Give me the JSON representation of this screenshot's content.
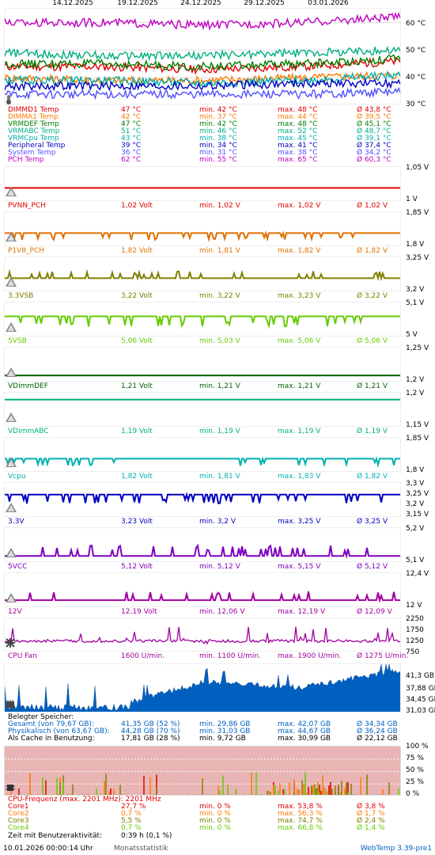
{
  "dates": [
    "14.12.2025",
    "19.12.2025",
    "24.12.2025",
    "29.12.2025",
    "03.01.2026"
  ],
  "colors": {
    "dimmd1": "#e00000",
    "dimma1": "#ff7a00",
    "vrmdef": "#008000",
    "vrmabc": "#00b080",
    "vrmcpu": "#00b0b0",
    "periph": "#0000c0",
    "system": "#5050ff",
    "pch": "#c000c0"
  },
  "temp_panel": {
    "y_labels": [
      "60 °C",
      "50 °C",
      "40 °C",
      "30 °C"
    ],
    "rows": [
      {
        "name": "DIMMD1 Temp",
        "cur": "47 °C",
        "min": "min. 42 °C",
        "max": "max. 48 °C",
        "avg": "Ø 43,8 °C",
        "color": "#e00000"
      },
      {
        "name": "DIMMA1 Temp",
        "cur": "42 °C",
        "min": "min. 37 °C",
        "max": "max. 44 °C",
        "avg": "Ø 39,5 °C",
        "color": "#ff7a00"
      },
      {
        "name": "VRMDEF Temp",
        "cur": "47 °C",
        "min": "min. 42 °C",
        "max": "max. 48 °C",
        "avg": "Ø 45,1 °C",
        "color": "#008000"
      },
      {
        "name": "VRMABC Temp",
        "cur": "51 °C",
        "min": "min. 46 °C",
        "max": "max. 52 °C",
        "avg": "Ø 48,7 °C",
        "color": "#00b080"
      },
      {
        "name": "VRMCpu Temp",
        "cur": "43 °C",
        "min": "min. 38 °C",
        "max": "max. 45 °C",
        "avg": "Ø 39,1 °C",
        "color": "#00b0b0"
      },
      {
        "name": "Peripheral Temp",
        "cur": "39 °C",
        "min": "min. 34 °C",
        "max": "max. 41 °C",
        "avg": "Ø 37,4 °C",
        "color": "#0000c0"
      },
      {
        "name": "System Temp",
        "cur": "36 °C",
        "min": "min. 31 °C",
        "max": "max. 38 °C",
        "avg": "Ø 34,2 °C",
        "color": "#5050ff"
      },
      {
        "name": "PCH Temp",
        "cur": "62 °C",
        "min": "min. 55 °C",
        "max": "max. 65 °C",
        "avg": "Ø 60,3 °C",
        "color": "#c000c0"
      }
    ]
  },
  "volt_panels": [
    {
      "id": "pvnn",
      "name": "PVNN_PCH",
      "cur": "1,02 Volt",
      "min": "min. 1,02 V",
      "max": "max. 1,02 V",
      "avg": "Ø 1,02 V",
      "color": "#e00000",
      "y_top": "1,05 V",
      "y_bot": "1 V",
      "lo": 1.0,
      "hi": 1.05,
      "base": 1.02,
      "spike": 0
    },
    {
      "id": "p1v8",
      "name": "P1V8_PCH",
      "cur": "1,82 Volt",
      "min": "min. 1,81 V",
      "max": "max. 1,82 V",
      "avg": "Ø 1,82 V",
      "color": "#e07000",
      "y_top": "1,85 V",
      "y_bot": "1,8 V",
      "lo": 1.8,
      "hi": 1.85,
      "base": 1.82,
      "spike": -0.01
    },
    {
      "id": "3v3sb",
      "name": "3.3VSB",
      "cur": "3,22 Volt",
      "min": "min. 3,22 V",
      "max": "max. 3,23 V",
      "avg": "Ø 3,22 V",
      "color": "#808000",
      "y_top": "3,25 V",
      "y_bot": "3,2 V",
      "lo": 3.2,
      "hi": 3.25,
      "base": 3.22,
      "spike": 0.01
    },
    {
      "id": "5vsb",
      "name": "5VSB",
      "cur": "5,06 Volt",
      "min": "min. 5,03 V",
      "max": "max. 5,06 V",
      "avg": "Ø 5,06 V",
      "color": "#66cc00",
      "y_top": "5,1 V",
      "y_bot": "5 V",
      "lo": 5.0,
      "hi": 5.1,
      "base": 5.06,
      "spike": -0.03
    },
    {
      "id": "vdimmdef",
      "name": "VDimmDEF",
      "cur": "1,21 Volt",
      "min": "min. 1,21 V",
      "max": "max. 1,21 V",
      "avg": "Ø 1,21 V",
      "color": "#006000",
      "y_top": "1,25 V",
      "y_bot": "1,2 V",
      "lo": 1.2,
      "hi": 1.25,
      "base": 1.21,
      "spike": 0
    },
    {
      "id": "vdimmabc",
      "name": "VDimmABC",
      "cur": "1,19 Volt",
      "min": "min. 1,19 V",
      "max": "max. 1,19 V",
      "avg": "Ø 1,19 V",
      "color": "#00b080",
      "y_top": "1,2 V",
      "y_bot": "1,15 V",
      "lo": 1.15,
      "hi": 1.2,
      "base": 1.19,
      "spike": 0
    },
    {
      "id": "vcpu",
      "name": "Vcpu",
      "cur": "1,82 Volt",
      "min": "min. 1,81 V",
      "max": "max. 1,83 V",
      "avg": "Ø 1,82 V",
      "color": "#00b0b0",
      "y_top": "1,85 V",
      "y_bot": "1,8 V",
      "lo": 1.8,
      "hi": 1.85,
      "base": 1.82,
      "spike": -0.01
    },
    {
      "id": "3v3",
      "name": "3.3V",
      "cur": "3,23 Volt",
      "min": "min. 3,2 V",
      "max": "max. 3,25 V",
      "avg": "Ø 3,25 V",
      "color": "#0000c0",
      "y_labels": [
        "3,3 V",
        "3,25 V",
        "3,2 V",
        "3,15 V"
      ],
      "lo": 3.15,
      "hi": 3.3,
      "base": 3.25,
      "spike": -0.04
    },
    {
      "id": "5vcc",
      "name": "5VCC",
      "cur": "5,12 Volt",
      "min": "min. 5,12 V",
      "max": "max. 5,15 V",
      "avg": "Ø 5,12 V",
      "color": "#8000c0",
      "y_top": "5,2 V",
      "y_bot": "5,1 V",
      "lo": 5.1,
      "hi": 5.2,
      "base": 5.12,
      "spike": 0.03
    },
    {
      "id": "12v",
      "name": "12V",
      "cur": "12,19 Volt",
      "min": "min. 12,06 V",
      "max": "max. 12,19 V",
      "avg": "Ø 12,09 V",
      "color": "#a000a0",
      "y_top": "12,4 V",
      "y_bot": "12 V",
      "lo": 12.0,
      "hi": 12.4,
      "base": 12.09,
      "spike": 0.1
    }
  ],
  "fan_panel": {
    "name": "CPU Fan",
    "cur": "1600 U/min.",
    "min": "min. 1100 U/min.",
    "max": "max. 1900 U/min.",
    "avg": "Ø 1275 U/min.",
    "color": "#a000a0",
    "y_labels": [
      "2250",
      "1750",
      "1250",
      "750"
    ]
  },
  "mem_panel": {
    "title": "Belegter Speicher:",
    "y_labels": [
      "41,3 GB",
      "37,88 GB",
      "34,45 GB",
      "31,03 GB"
    ],
    "rows": [
      {
        "name": "Gesamt (von 79,67 GB):",
        "cur": "41,35 GB (52 %)",
        "min": "min. 29,86 GB",
        "max": "max. 42,07 GB",
        "avg": "Ø 34,34 GB",
        "color": "#0060c0"
      },
      {
        "name": "Physikalisch (von 63,67 GB):",
        "cur": "44,28 GB (70 %)",
        "min": "min. 31,03 GB",
        "max": "max. 44,67 GB",
        "avg": "Ø 36,24 GB",
        "color": "#0060c0"
      },
      {
        "name": "Als Cache in Benutzung:",
        "cur": "17,81 GB (28 %)",
        "min": "min. 9,72 GB",
        "max": "max. 30,99 GB",
        "avg": "Ø 22,12 GB",
        "color": "#000000"
      }
    ]
  },
  "cpu_panel": {
    "y_labels": [
      "100 %",
      "75 %",
      "50 %",
      "25 %",
      "0 %"
    ],
    "freq": "CPU-Frequenz (max. 2201 MHz): 2201 MHz",
    "rows": [
      {
        "name": "Core1",
        "cur": "27,7 %",
        "min": "min. 0 %",
        "max": "max. 53,8 %",
        "avg": "Ø 3,8 %",
        "color": "#e00000"
      },
      {
        "name": "Core2",
        "cur": "0,7 %",
        "min": "min. 0 %",
        "max": "max. 56,3 %",
        "avg": "Ø 1,7 %",
        "color": "#ff7a00"
      },
      {
        "name": "Core3",
        "cur": "5,5 %",
        "min": "min. 0 %",
        "max": "max. 74,7 %",
        "avg": "Ø 2,4 %",
        "color": "#808000"
      },
      {
        "name": "Core4",
        "cur": "0,7 %",
        "min": "min. 0 %",
        "max": "max. 66,8 %",
        "avg": "Ø 1,4 %",
        "color": "#66cc00"
      }
    ],
    "activity_label": "Zeit mit Benutzeraktivität:",
    "activity_value": "0:39 h (0,1 %)"
  },
  "footer": {
    "timestamp": "10.01.2026 00:00:14 Uhr",
    "stat": "Monatsstatistik",
    "version": "WebTemp 3.39-pre1"
  },
  "chart_data": [
    {
      "type": "line",
      "title": "",
      "xlabel": "",
      "ylabel": "",
      "x": [
        "14.12.2025",
        "19.12.2025",
        "24.12.2025",
        "29.12.2025",
        "03.01.2026"
      ],
      "ylim": [
        30,
        65
      ],
      "series": [
        {
          "name": "DIMMD1 Temp",
          "values": [
            44,
            44,
            43,
            44,
            46
          ]
        },
        {
          "name": "DIMMA1 Temp",
          "values": [
            40,
            39,
            39,
            40,
            41
          ]
        },
        {
          "name": "VRMDEF Temp",
          "values": [
            45,
            45,
            44,
            45,
            47
          ]
        },
        {
          "name": "VRMABC Temp",
          "values": [
            49,
            48,
            48,
            49,
            50
          ]
        },
        {
          "name": "VRMCpu Temp",
          "values": [
            39,
            39,
            38,
            39,
            41
          ]
        },
        {
          "name": "Peripheral Temp",
          "values": [
            37,
            37,
            37,
            38,
            38
          ]
        },
        {
          "name": "System Temp",
          "values": [
            34,
            34,
            34,
            34,
            35
          ]
        },
        {
          "name": "PCH Temp",
          "values": [
            60,
            60,
            59,
            60,
            62
          ]
        }
      ]
    },
    {
      "type": "area",
      "title": "",
      "ylabel": "",
      "ylim": [
        31.03,
        41.3
      ],
      "series": [
        {
          "name": "Gesamt (von 79,67 GB):",
          "values": [
            31.5,
            32,
            37.5,
            36.5,
            40
          ]
        }
      ]
    },
    {
      "type": "area",
      "title": "",
      "ylabel": "",
      "ylim": [
        0,
        100
      ],
      "series": [
        {
          "name": "Core1",
          "values": [
            3,
            3,
            5,
            4,
            4
          ]
        },
        {
          "name": "Core2",
          "values": [
            1,
            2,
            2,
            2,
            2
          ]
        },
        {
          "name": "Core3",
          "values": [
            2,
            2,
            3,
            3,
            3
          ]
        },
        {
          "name": "Core4",
          "values": [
            1,
            1,
            2,
            2,
            2
          ]
        }
      ]
    }
  ]
}
